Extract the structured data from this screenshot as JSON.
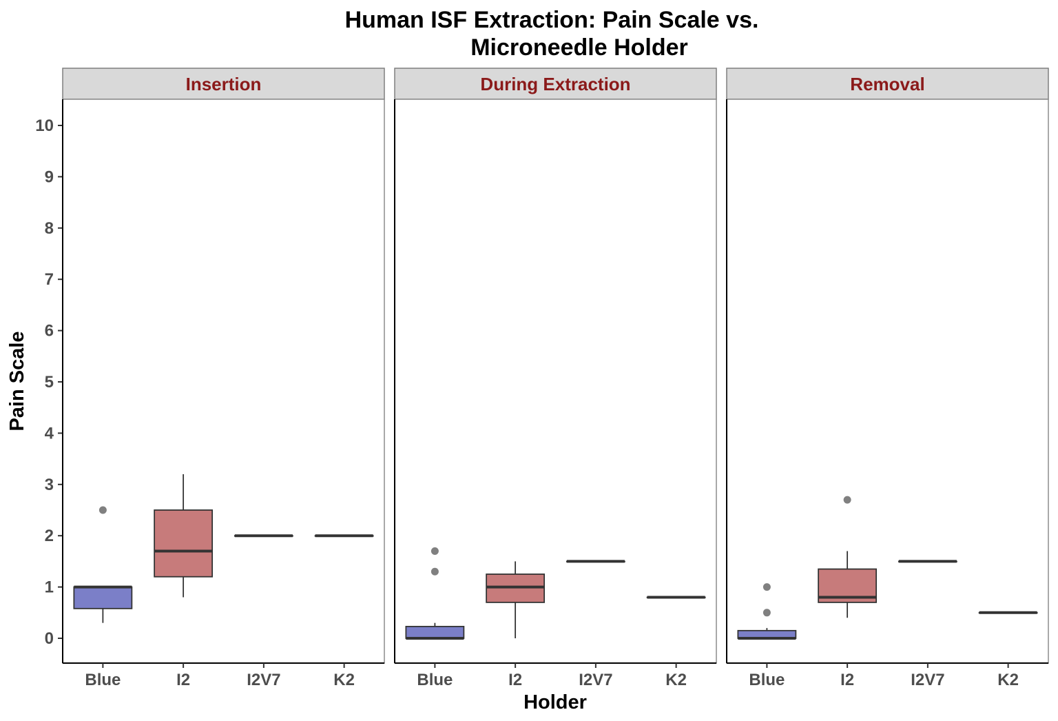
{
  "chart_data": {
    "type": "box",
    "title": [
      "Human ISF Extraction: Pain Scale vs.",
      "Microneedle Holder"
    ],
    "xlabel": "Holder",
    "ylabel": "Pain Scale",
    "ylim": [
      -0.5,
      10.5
    ],
    "yticks": [
      0,
      1,
      2,
      3,
      4,
      5,
      6,
      7,
      8,
      9,
      10
    ],
    "categories": [
      "Blue",
      "I2",
      "I2V7",
      "K2"
    ],
    "colors": {
      "Blue": "#7b7fc8",
      "I2": "#c77b7b",
      "I2V7": "#c77b7b",
      "K2": "#c77b7b"
    },
    "grid": false,
    "panels": [
      {
        "name": "Insertion",
        "boxes": [
          {
            "category": "Blue",
            "whisker_low": 0.3,
            "q1": 0.58,
            "median": 1.0,
            "q3": 1.0,
            "whisker_high": 1.0,
            "outliers": [
              2.5
            ]
          },
          {
            "category": "I2",
            "whisker_low": 0.8,
            "q1": 1.2,
            "median": 1.7,
            "q3": 2.5,
            "whisker_high": 3.2,
            "outliers": []
          },
          {
            "category": "I2V7",
            "whisker_low": 2.0,
            "q1": 2.0,
            "median": 2.0,
            "q3": 2.0,
            "whisker_high": 2.0,
            "outliers": []
          },
          {
            "category": "K2",
            "whisker_low": 2.0,
            "q1": 2.0,
            "median": 2.0,
            "q3": 2.0,
            "whisker_high": 2.0,
            "outliers": []
          }
        ]
      },
      {
        "name": "During Extraction",
        "boxes": [
          {
            "category": "Blue",
            "whisker_low": 0.0,
            "q1": 0.0,
            "median": 0.0,
            "q3": 0.23,
            "whisker_high": 0.3,
            "outliers": [
              1.3,
              1.7
            ]
          },
          {
            "category": "I2",
            "whisker_low": 0.0,
            "q1": 0.7,
            "median": 1.0,
            "q3": 1.25,
            "whisker_high": 1.5,
            "outliers": []
          },
          {
            "category": "I2V7",
            "whisker_low": 1.5,
            "q1": 1.5,
            "median": 1.5,
            "q3": 1.5,
            "whisker_high": 1.5,
            "outliers": []
          },
          {
            "category": "K2",
            "whisker_low": 0.8,
            "q1": 0.8,
            "median": 0.8,
            "q3": 0.8,
            "whisker_high": 0.8,
            "outliers": []
          }
        ]
      },
      {
        "name": "Removal",
        "boxes": [
          {
            "category": "Blue",
            "whisker_low": 0.0,
            "q1": 0.0,
            "median": 0.0,
            "q3": 0.15,
            "whisker_high": 0.2,
            "outliers": [
              0.5,
              1.0
            ]
          },
          {
            "category": "I2",
            "whisker_low": 0.4,
            "q1": 0.7,
            "median": 0.8,
            "q3": 1.35,
            "whisker_high": 1.7,
            "outliers": [
              2.7
            ]
          },
          {
            "category": "I2V7",
            "whisker_low": 1.5,
            "q1": 1.5,
            "median": 1.5,
            "q3": 1.5,
            "whisker_high": 1.5,
            "outliers": []
          },
          {
            "category": "K2",
            "whisker_low": 0.5,
            "q1": 0.5,
            "median": 0.5,
            "q3": 0.5,
            "whisker_high": 0.5,
            "outliers": []
          }
        ]
      }
    ]
  }
}
